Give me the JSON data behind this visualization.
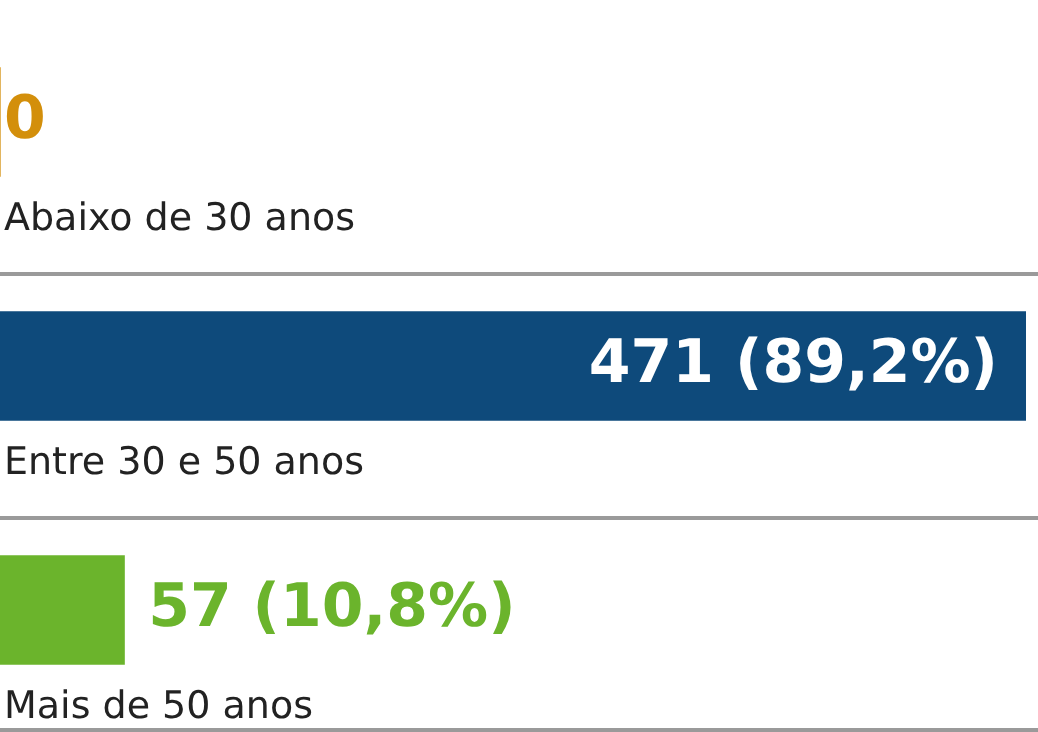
{
  "chart_data": {
    "type": "bar",
    "orientation": "horizontal",
    "categories": [
      "Abaixo de 30 anos",
      "Entre 30 e 50 anos",
      "Mais de 50 anos"
    ],
    "values": [
      0,
      471,
      57
    ],
    "colors": [
      "#d38f0b",
      "#0e4a7b",
      "#6bb42c"
    ],
    "value_labels": [
      "0",
      "471 (89,2%)",
      "57 (10,8%)"
    ]
  }
}
